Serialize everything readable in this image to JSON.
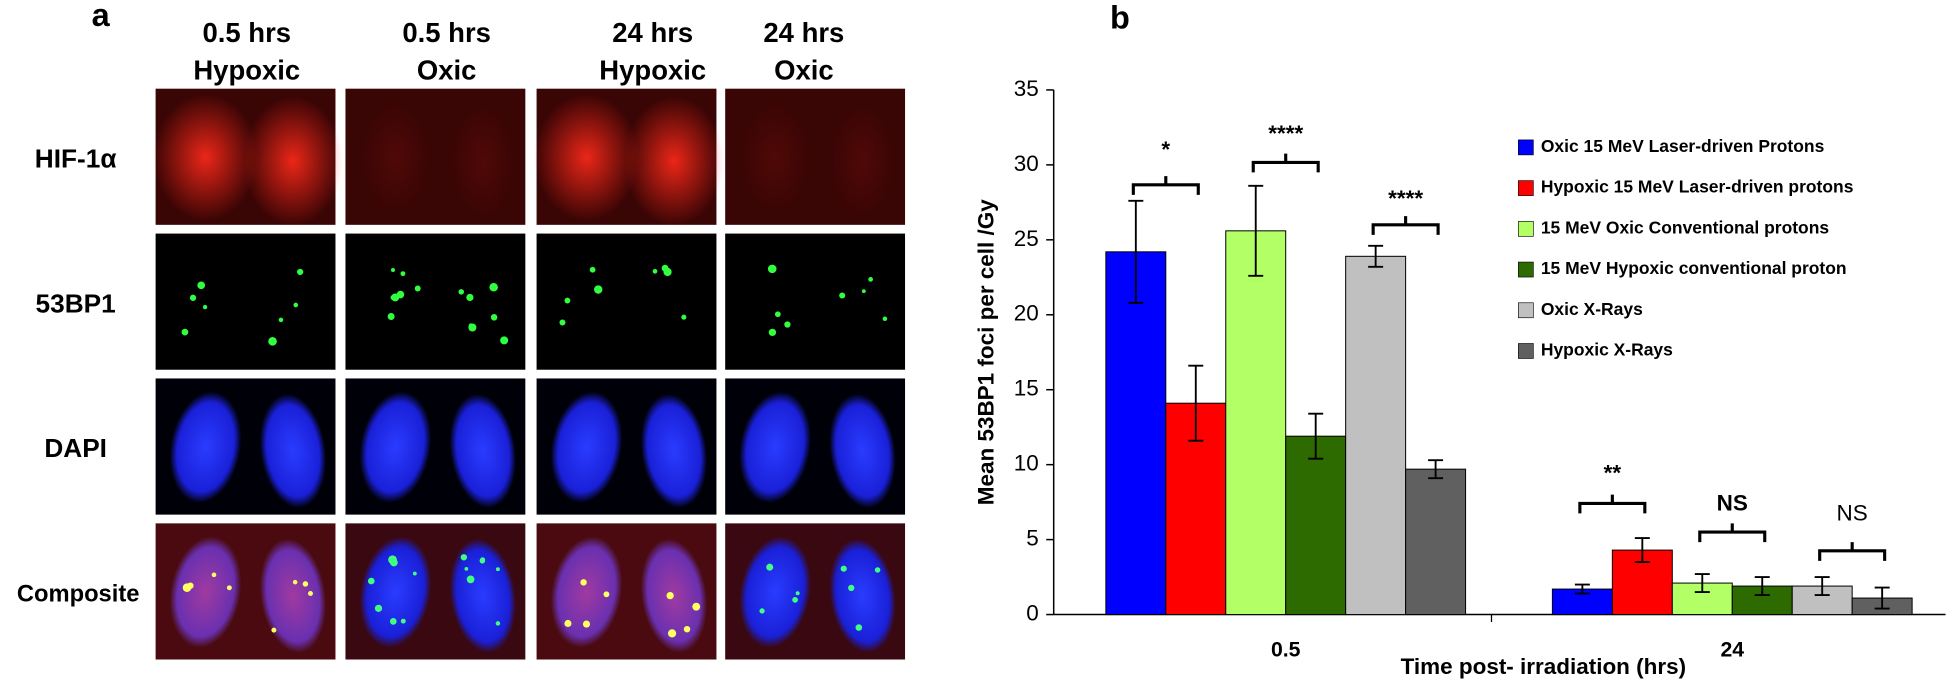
{
  "panel_a": {
    "label": "a",
    "columns": [
      [
        "0.5 hrs",
        "Hypoxic"
      ],
      [
        "0.5 hrs",
        "Oxic"
      ],
      [
        "24 hrs",
        "Hypoxic"
      ],
      [
        "24 hrs",
        "Oxic"
      ]
    ],
    "rows": [
      "HIF-1α",
      "53BP1",
      "DAPI",
      "Composite"
    ]
  },
  "chart_data": {
    "type": "bar",
    "panel_label": "b",
    "y_label": "Mean 53BP1 foci per cell /Gy",
    "x_label": "Time post- irradiation (hrs)",
    "categories": [
      "0.5",
      "24"
    ],
    "series": [
      {
        "name": "Oxic 15 MeV Laser-driven Protons",
        "color": "#0000ff",
        "values": [
          24.2,
          1.7
        ],
        "errors": [
          3.4,
          0.3
        ]
      },
      {
        "name": "Hypoxic 15 MeV Laser-driven protons",
        "color": "#ff0000",
        "values": [
          14.1,
          4.3
        ],
        "errors": [
          2.5,
          0.8
        ]
      },
      {
        "name": "15 MeV Oxic Conventional protons",
        "color": "#b3ff66",
        "values": [
          25.6,
          2.1
        ],
        "errors": [
          3.0,
          0.6
        ]
      },
      {
        "name": "15 MeV Hypoxic conventional proton",
        "color": "#2d6a00",
        "values": [
          11.9,
          1.9
        ],
        "errors": [
          1.5,
          0.6
        ]
      },
      {
        "name": "Oxic  X-Rays",
        "color": "#c0c0c0",
        "values": [
          23.9,
          1.9
        ],
        "errors": [
          0.7,
          0.6
        ]
      },
      {
        "name": "Hypoxic  X-Rays",
        "color": "#606060",
        "values": [
          9.7,
          1.1
        ],
        "errors": [
          0.6,
          0.7
        ]
      }
    ],
    "ylim": [
      0,
      35
    ],
    "yticks": [
      0,
      5,
      10,
      15,
      20,
      25,
      30,
      35
    ],
    "annotations": [
      "*",
      "****",
      "****",
      "**",
      "NS",
      "NS"
    ]
  }
}
